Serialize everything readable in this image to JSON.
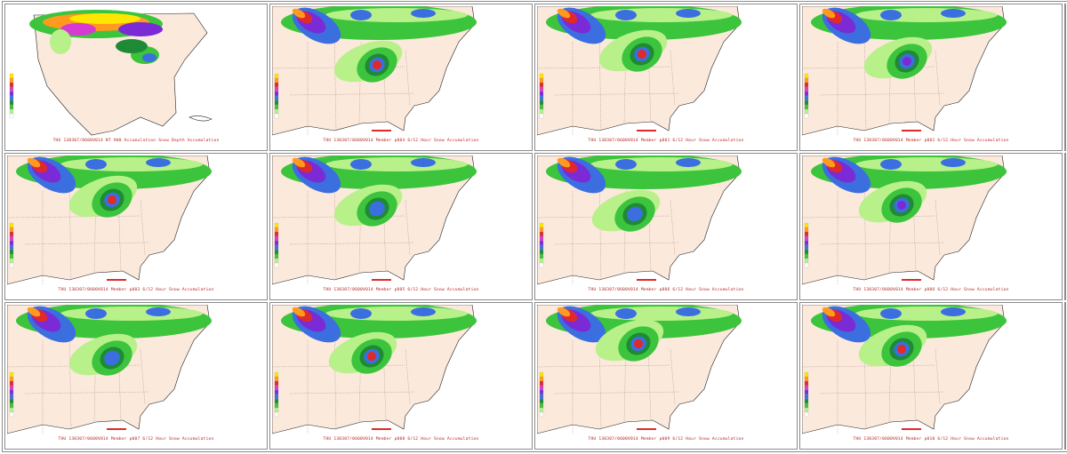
{
  "panels": [
    {
      "id": "overview",
      "caption": "THU 130307/0600V014  NT 900 Accumulation  Snow Depth Accumulation",
      "kind": "overview"
    },
    {
      "id": "p004",
      "caption": "THU 130307/0600V014    Member p004 6/12 Hour Snow Accumulation",
      "kind": "member"
    },
    {
      "id": "p001",
      "caption": "THU 130307/0600V014    Member p001 6/12 Hour Snow Accumulation",
      "kind": "member"
    },
    {
      "id": "p002",
      "caption": "THU 130307/0600V014    Member p002 6/12 Hour Snow Accumulation",
      "kind": "member"
    },
    {
      "id": "p003",
      "caption": "THU 130307/0600V014    Member p003 6/12 Hour Snow Accumulation",
      "kind": "member"
    },
    {
      "id": "p005",
      "caption": "THU 130307/0600V014    Member p005 6/12 Hour Snow Accumulation",
      "kind": "member"
    },
    {
      "id": "p006",
      "caption": "THU 130307/0600V014    Member p006 6/12 Hour Snow Accumulation",
      "kind": "member"
    },
    {
      "id": "p006b",
      "caption": "THU 130307/0600V014    Member p006 6/12 Hour Snow Accumulation",
      "kind": "member"
    },
    {
      "id": "p007",
      "caption": "THU 130307/0600V014    Member p007 6/12 Hour Snow Accumulation",
      "kind": "member"
    },
    {
      "id": "p008",
      "caption": "THU 130307/0600V014    Member p008 6/12 Hour Snow Accumulation",
      "kind": "member"
    },
    {
      "id": "p009",
      "caption": "THU 130307/0600V014    Member p009 6/12 Hour Snow Accumulation",
      "kind": "member"
    },
    {
      "id": "p010",
      "caption": "THU 130307/0600V014    Member p010 6/12 Hour Snow Accumulation",
      "kind": "member"
    }
  ],
  "colors": {
    "land": "#fbe9dc",
    "border": "#8a6a5a",
    "coast": "#222222",
    "light_green": "#b8f08a",
    "green": "#3cc43c",
    "dark_green": "#1f8a36",
    "blue": "#3b6fe0",
    "purple": "#7a2bd6",
    "magenta": "#d63ad2",
    "red": "#e02a2a",
    "orange": "#ff9a1f",
    "yellow": "#ffe600"
  },
  "legend_colors": [
    "#ffe600",
    "#ff9a1f",
    "#e02a2a",
    "#d63ad2",
    "#7a2bd6",
    "#3b6fe0",
    "#1f8a36",
    "#3cc43c",
    "#b8f08a",
    "#ffffff"
  ],
  "icons": {
    "panel": "map-panel"
  }
}
